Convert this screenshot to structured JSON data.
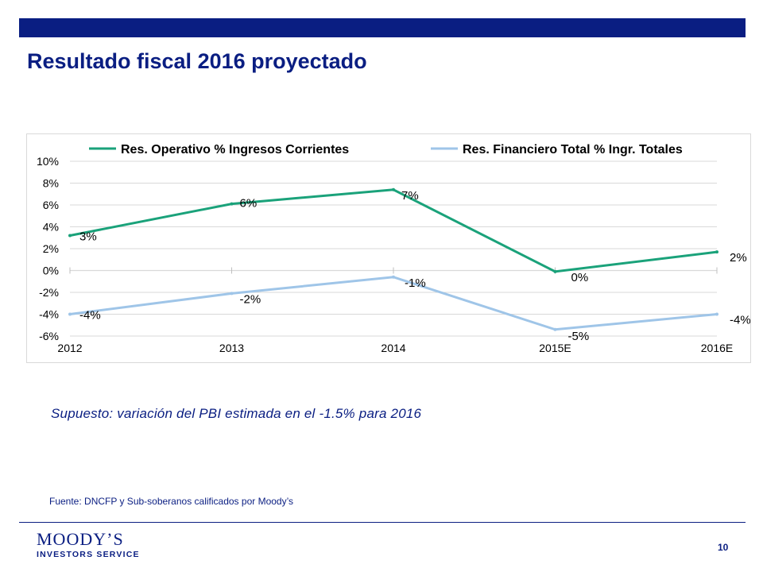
{
  "page": {
    "title": "Resultado fiscal 2016 proyectado",
    "assumption": "Supuesto: variación del PBI estimada en el -1.5% para 2016",
    "source": "Fuente: DNCFP  y Sub-soberanos calificados por Moody’s",
    "logo_main": "MOODY’S",
    "logo_sub": "INVESTORS SERVICE",
    "page_number": "10"
  },
  "colors": {
    "brand": "#0a1e82",
    "series1": "#1aa27a",
    "series2": "#9fc5e8",
    "grid": "#d9d9d9"
  },
  "chart_data": {
    "type": "line",
    "title": "",
    "xlabel": "",
    "ylabel": "",
    "categories": [
      "2012",
      "2013",
      "2014",
      "2015E",
      "2016E"
    ],
    "ylim": [
      -6,
      10
    ],
    "yticks": [
      -6,
      -4,
      -2,
      0,
      2,
      4,
      6,
      8,
      10
    ],
    "ytick_labels": [
      "-6%",
      "-4%",
      "-2%",
      "0%",
      "2%",
      "4%",
      "6%",
      "8%",
      "10%"
    ],
    "grid": true,
    "legend_position": "top",
    "series": [
      {
        "name": "Res. Operativo % Ingresos Corrientes",
        "values": [
          3.2,
          6.1,
          7.4,
          -0.1,
          1.7
        ],
        "labels": [
          "3%",
          "6%",
          "7%",
          "0%",
          "2%"
        ],
        "color": "#1aa27a"
      },
      {
        "name": "Res. Financiero Total % Ingr. Totales",
        "values": [
          -4.0,
          -2.1,
          -0.6,
          -5.4,
          -4.0
        ],
        "labels": [
          "-4%",
          "-2%",
          "-1%",
          "-5%",
          "-4%"
        ],
        "color": "#9fc5e8"
      }
    ]
  }
}
